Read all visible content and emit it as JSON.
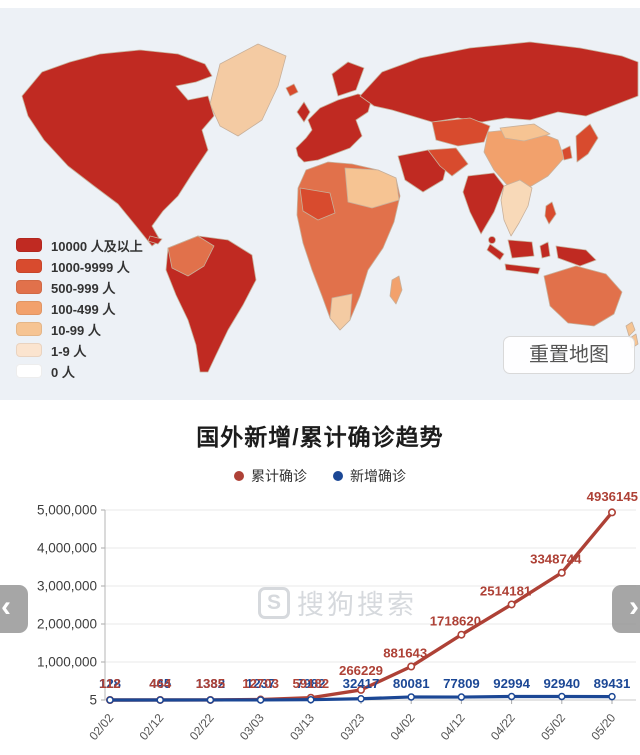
{
  "map": {
    "reset_button": "重置地图",
    "legend": [
      {
        "label": "10000 人及以上",
        "color": "#c02a22"
      },
      {
        "label": "1000-9999 人",
        "color": "#d84b2e"
      },
      {
        "label": "500-999 人",
        "color": "#e1714b"
      },
      {
        "label": "100-499 人",
        "color": "#f2a16c"
      },
      {
        "label": "10-99 人",
        "color": "#f6c493"
      },
      {
        "label": "1-9 人",
        "color": "#fbe4cf"
      },
      {
        "label": "0 人",
        "color": "#ffffff"
      }
    ],
    "region_colors": {
      "ocean": "#edf1f6",
      "greenland": "#f4cba3",
      "north-america": "#c02a22",
      "cuba": "#c02a22",
      "south-america": "#c02a22",
      "south-america-west": "#e1714b",
      "europe": "#c02a22",
      "scandinavia": "#c02a22",
      "uk": "#c02a22",
      "iceland": "#d84b2e",
      "russia": "#c02a22",
      "central-asia": "#d84b2e",
      "china": "#f2a16c",
      "mongolia": "#f6c493",
      "india": "#c02a22",
      "sri-lanka": "#c02a22",
      "middle-east": "#c02a22",
      "iran": "#d84b2e",
      "southeast-asia": "#f8d9b8",
      "indonesia": "#c02a22",
      "philippines": "#d84b2e",
      "japan": "#d84b2e",
      "korea": "#d84b2e",
      "africa": "#e1714b",
      "africa-sahara": "#f6c493",
      "africa-west": "#d84b2e",
      "africa-south": "#f4cba3",
      "madagascar": "#f2a16c",
      "australia": "#e1714b",
      "new-zealand": "#f6c493"
    }
  },
  "chart_data": {
    "type": "line",
    "title": "国外新增/累计确诊趋势",
    "categories": [
      "02/02",
      "02/12",
      "02/22",
      "03/03",
      "03/13",
      "03/23",
      "04/02",
      "04/12",
      "04/22",
      "05/02",
      "05/20"
    ],
    "series": [
      {
        "name": "累计确诊",
        "color": "#ae4136",
        "values": [
          112,
          464,
          1385,
          12703,
          59182,
          266229,
          881643,
          1718620,
          2514181,
          3348744,
          4936145
        ]
      },
      {
        "name": "新增确诊",
        "color": "#1b4795",
        "values": [
          128,
          445,
          1332,
          1237,
          7982,
          32417,
          80081,
          77809,
          92994,
          92940,
          89431
        ]
      }
    ],
    "ylim": [
      5,
      5000000
    ],
    "yticks": [
      5,
      1000000,
      2000000,
      3000000,
      4000000,
      5000000
    ],
    "ytick_labels": [
      "5",
      "1,000,000",
      "2,000,000",
      "3,000,000",
      "4,000,000",
      "5,000,000"
    ],
    "grid": true,
    "legend_position": "top"
  },
  "watermark": {
    "logo_letter": "S",
    "text": "搜狗搜索"
  },
  "nav": {
    "prev": "‹",
    "next": "›"
  }
}
